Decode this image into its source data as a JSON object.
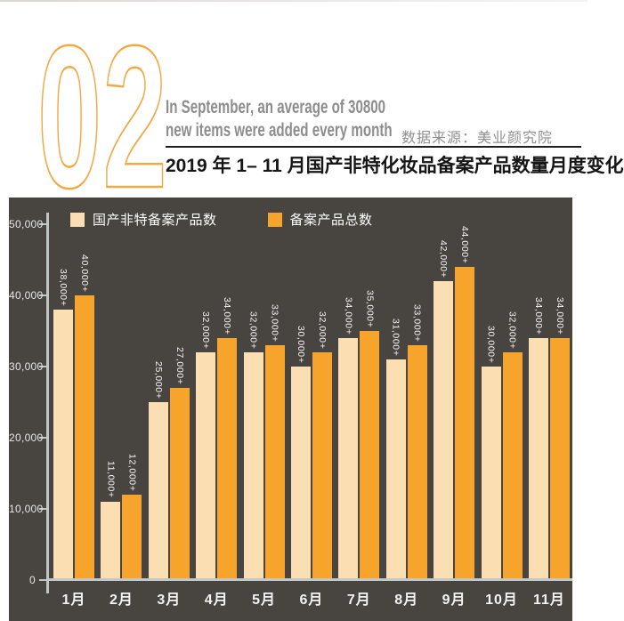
{
  "header": {
    "section_number": "02",
    "subtitle_line1": "In September, an average of 30800",
    "subtitle_line2": "new items were added every month",
    "source": "数据来源：美业颜究院",
    "title": "2019 年 1– 11 月国产非特化妆品备案产品数量月度变化",
    "accent_color": "#f2a843"
  },
  "chart": {
    "background": "#48443f",
    "axis_color": "#c2c7c7",
    "text_color": "#f5f5f5"
  },
  "chart_data": {
    "type": "bar",
    "title": "2019 年 1– 11 月国产非特化妆品备案产品数量月度变化",
    "categories": [
      "1月",
      "2月",
      "3月",
      "4月",
      "5月",
      "6月",
      "7月",
      "8月",
      "9月",
      "10月",
      "11月"
    ],
    "series": [
      {
        "name": "国产非特备案产品数",
        "color": "#fbdfb2",
        "values": [
          38000,
          11000,
          25000,
          32000,
          32000,
          30000,
          34000,
          31000,
          42000,
          30000,
          34000
        ],
        "labels": [
          "38,000+",
          "11,000+",
          "25,000+",
          "32,000+",
          "32,000+",
          "30,000+",
          "34,000+",
          "31,000+",
          "42,000+",
          "30,000+",
          "34,000+"
        ]
      },
      {
        "name": "备案产品总数",
        "color": "#f7a42d",
        "values": [
          40000,
          12000,
          27000,
          34000,
          33000,
          32000,
          35000,
          33000,
          44000,
          32000,
          34000
        ],
        "labels": [
          "40,000+",
          "12,000+",
          "27,000+",
          "34,000+",
          "33,000+",
          "32,000+",
          "35,000+",
          "33,000+",
          "44,000+",
          "32,000+",
          "34,000+"
        ]
      }
    ],
    "ylim": [
      0,
      50000
    ],
    "y_ticks": [
      50000,
      40000,
      30000,
      20000,
      10000,
      0
    ],
    "y_tick_labels": [
      "50,000",
      "40,000",
      "30,000",
      "20,000",
      "10,000",
      "0"
    ],
    "xlabel": "",
    "ylabel": "",
    "grid": false,
    "legend_position": "top"
  }
}
